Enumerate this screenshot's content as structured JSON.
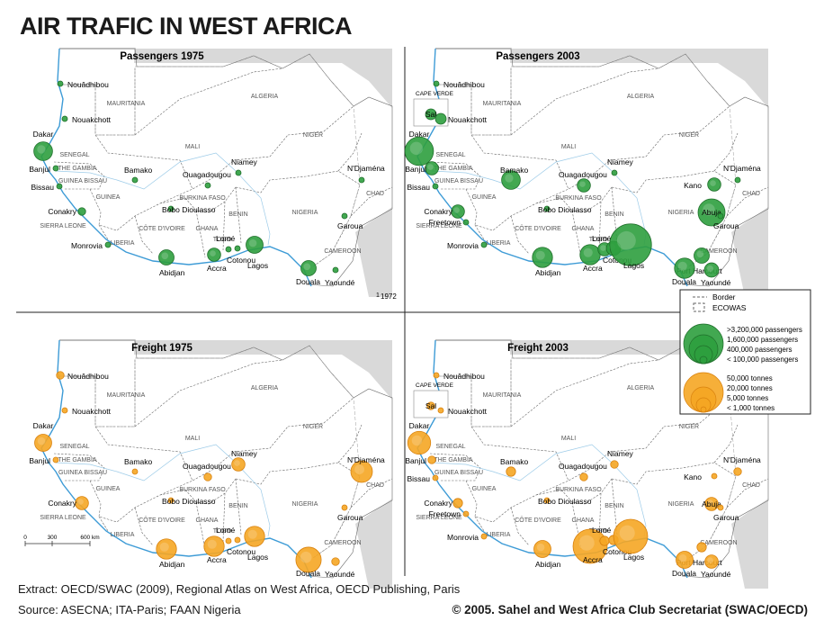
{
  "title": "AIR TRAFIC IN WEST AFRICA",
  "colors": {
    "passengers_fill": "#2e9e3e",
    "passengers_stroke": "#1f6e2a",
    "freight_fill": "#f5a623",
    "freight_stroke": "#d9820e",
    "outside_land": "#d9d9d9",
    "coast": "#3d9bd6",
    "border": "#666666"
  },
  "icons": {
    "passengers_legend": "green-circle-stack",
    "freight_legend": "orange-circle-stack"
  },
  "panels": [
    {
      "id": "p1975",
      "title": "Passengers 1975",
      "kind": "passengers",
      "footnote_mark": "1",
      "footnote": "1972",
      "cities": [
        {
          "name": "Nouâdhibou",
          "value": 1
        },
        {
          "name": "Nouakchott",
          "value": 1
        },
        {
          "name": "Dakar",
          "value": 12
        },
        {
          "name": "Banjul",
          "value": 1
        },
        {
          "name": "Bissau",
          "value": 1
        },
        {
          "name": "Conakry",
          "value": 2
        },
        {
          "name": "Monrovia",
          "value": 1
        },
        {
          "name": "Bamako",
          "value": 1
        },
        {
          "name": "Ouagadougou",
          "value": 1
        },
        {
          "name": "Niamey",
          "value": 1
        },
        {
          "name": "N'Djaména",
          "value": 1
        },
        {
          "name": "Bobo Dioulasso",
          "value": 1
        },
        {
          "name": "Garoua",
          "value": 1
        },
        {
          "name": "Abidjan",
          "value": 8
        },
        {
          "name": "Accra",
          "value": 6
        },
        {
          "name": "Lomé",
          "value": 1
        },
        {
          "name": "Cotonou",
          "value": 1
        },
        {
          "name": "Lagos",
          "value": 10
        },
        {
          "name": "Douala",
          "value": 8
        },
        {
          "name": "Yaoundé",
          "value": 1
        }
      ],
      "countries": [
        "MAURITANIA",
        "ALGERIA",
        "MALI",
        "NIGER",
        "SENEGAL",
        "THE GAMBIA",
        "GUINEA BISSAU",
        "GUINEA",
        "SIERRA LEONE",
        "LIBERIA",
        "BURKINA FASO",
        "CÔTE D'IVOIRE",
        "GHANA",
        "TOGO",
        "BENIN",
        "NIGERIA",
        "CHAD",
        "CAMEROON"
      ]
    },
    {
      "id": "p2003",
      "title": "Passengers 2003",
      "kind": "passengers",
      "inset_label": "CAPE VERDE",
      "cities": [
        {
          "name": "Sal",
          "value": 4
        },
        {
          "name": "Nouâdhibou",
          "value": 1
        },
        {
          "name": "Nouakchott",
          "value": 4
        },
        {
          "name": "Dakar",
          "value": 28
        },
        {
          "name": "Banjul",
          "value": 6
        },
        {
          "name": "Bissau",
          "value": 1
        },
        {
          "name": "Conakry",
          "value": 6
        },
        {
          "name": "Freetown",
          "value": 1
        },
        {
          "name": "Monrovia",
          "value": 1
        },
        {
          "name": "Bamako",
          "value": 12
        },
        {
          "name": "Ouagadougou",
          "value": 6
        },
        {
          "name": "Niamey",
          "value": 1
        },
        {
          "name": "N'Djaména",
          "value": 1
        },
        {
          "name": "Kano",
          "value": 6
        },
        {
          "name": "Bobo Dioulasso",
          "value": 1
        },
        {
          "name": "Abuja",
          "value": 25
        },
        {
          "name": "Garoua",
          "value": 1
        },
        {
          "name": "Abidjan",
          "value": 14
        },
        {
          "name": "Accra",
          "value": 14
        },
        {
          "name": "Lomé",
          "value": 6
        },
        {
          "name": "Cotonou",
          "value": 7
        },
        {
          "name": "Lagos",
          "value": 60
        },
        {
          "name": "Port Harcourt",
          "value": 8
        },
        {
          "name": "Douala",
          "value": 14
        },
        {
          "name": "Yaoundé",
          "value": 7
        }
      ],
      "countries": [
        "MAURITANIA",
        "ALGERIA",
        "MALI",
        "NIGER",
        "SENEGAL",
        "THE GAMBIA",
        "GUINEA BISSAU",
        "GUINEA",
        "SIERRA LEONE",
        "LIBERIA",
        "BURKINA FASO",
        "CÔTE D'IVOIRE",
        "GHANA",
        "TOGO",
        "BENIN",
        "NIGERIA",
        "CHAD",
        "CAMEROON"
      ]
    },
    {
      "id": "f1975",
      "title": "Freight 1975",
      "kind": "freight",
      "footnote_mark": "2",
      "cities": [
        {
          "name": "Nouâdhibou",
          "value": 2
        },
        {
          "name": "Nouakchott",
          "value": 1
        },
        {
          "name": "Dakar",
          "value": 10
        },
        {
          "name": "Banjul",
          "value": 1
        },
        {
          "name": "Conakry",
          "value": 6
        },
        {
          "name": "Bamako",
          "value": 1
        },
        {
          "name": "Ouagadougou",
          "value": 2
        },
        {
          "name": "Niamey",
          "value": 6
        },
        {
          "name": "N'Djaména",
          "value": 16
        },
        {
          "name": "Bobo Dioulasso",
          "value": 1
        },
        {
          "name": "Garoua",
          "value": 1
        },
        {
          "name": "Abidjan",
          "value": 14
        },
        {
          "name": "Accra",
          "value": 14
        },
        {
          "name": "Lomé",
          "value": 1
        },
        {
          "name": "Cotonou",
          "value": 1
        },
        {
          "name": "Lagos",
          "value": 14
        },
        {
          "name": "Douala",
          "value": 22
        },
        {
          "name": "Yaoundé",
          "value": 2
        }
      ],
      "countries": [
        "MAURITANIA",
        "ALGERIA",
        "MALI",
        "NIGER",
        "SENEGAL",
        "THE GAMBIA",
        "GUINEA BISSAU",
        "GUINEA",
        "SIERRA LEONE",
        "LIBERIA",
        "BURKINA FASO",
        "CÔTE D'IVOIRE",
        "GHANA",
        "TOGO",
        "BENIN",
        "NIGERIA",
        "CHAD",
        "CAMEROON"
      ],
      "scale": {
        "labels": [
          "0",
          "300",
          "600 km"
        ]
      }
    },
    {
      "id": "f2003",
      "title": "Freight 2003",
      "kind": "freight",
      "inset_label": "CAPE VERDE",
      "footnote_mark": "3",
      "cities": [
        {
          "name": "Sal",
          "value": 2
        },
        {
          "name": "Nouâdhibou",
          "value": 1
        },
        {
          "name": "Nouakchott",
          "value": 1
        },
        {
          "name": "Dakar",
          "value": 18
        },
        {
          "name": "Banjul",
          "value": 2
        },
        {
          "name": "Bissau",
          "value": 1
        },
        {
          "name": "Conakry",
          "value": 3
        },
        {
          "name": "Freetown",
          "value": 1
        },
        {
          "name": "Monrovia",
          "value": 1
        },
        {
          "name": "Bamako",
          "value": 3
        },
        {
          "name": "Ouagadougou",
          "value": 2
        },
        {
          "name": "Niamey",
          "value": 2
        },
        {
          "name": "N'Djaména",
          "value": 2
        },
        {
          "name": "Kano",
          "value": 1
        },
        {
          "name": "Bobo Dioulasso",
          "value": 1
        },
        {
          "name": "Abuja",
          "value": 6
        },
        {
          "name": "Garoua",
          "value": 1
        },
        {
          "name": "Abidjan",
          "value": 10
        },
        {
          "name": "Accra",
          "value": 40
        },
        {
          "name": "Lomé",
          "value": 3
        },
        {
          "name": "Cotonou",
          "value": 3
        },
        {
          "name": "Lagos",
          "value": 40
        },
        {
          "name": "Port Harcourt",
          "value": 3
        },
        {
          "name": "Douala",
          "value": 10
        },
        {
          "name": "Yaoundé",
          "value": 6
        }
      ],
      "countries": [
        "MAURITANIA",
        "ALGERIA",
        "MALI",
        "NIGER",
        "SENEGAL",
        "THE GAMBIA",
        "GUINEA BISSAU",
        "GUINEA",
        "SIERRA LEONE",
        "LIBERIA",
        "BURKINA FASO",
        "CÔTE D'IVOIRE",
        "GHANA",
        "TOGO",
        "BENIN",
        "NIGERIA",
        "CHAD",
        "CAMEROON"
      ]
    }
  ],
  "legend": {
    "border_label": "Border",
    "ecowas_label": "ECOWAS",
    "passengers": [
      ">3,200,000 passengers",
      "1,600,000 passengers",
      "400,000 passengers",
      "< 100,000 passengers"
    ],
    "freight": [
      "50,000  tonnes",
      "20,000 tonnes",
      "5,000 tonnes",
      "< 1,000 tonnes"
    ]
  },
  "footer": {
    "extract": "Extract: OECD/SWAC (2009), Regional Atlas on West Africa, OECD Publishing, Paris",
    "source": "Source: ASECNA; ITA-Paris; FAAN Nigeria",
    "copyright": "© 2005. Sahel and West Africa Club Secretariat (SWAC/OECD)"
  }
}
